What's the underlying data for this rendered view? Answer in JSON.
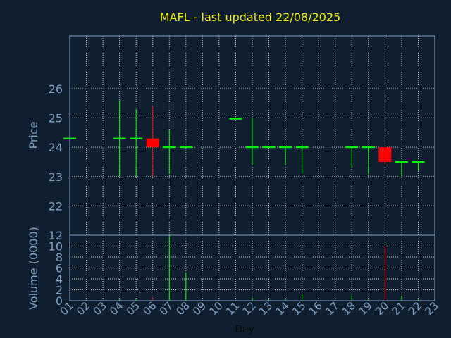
{
  "chart_data": {
    "type": "candlestick",
    "title": "MAFL - last updated 22/08/2025",
    "xlabel": "Day",
    "price_panel": {
      "ylabel": "Price",
      "yticks": [
        22,
        23,
        24,
        25,
        26
      ],
      "ylim": [
        21,
        27.8
      ]
    },
    "volume_panel": {
      "ylabel": "Volume (0000)",
      "yticks": [
        0,
        2,
        4,
        6,
        8,
        10,
        12
      ],
      "ylim": [
        0,
        12
      ]
    },
    "days": [
      "01",
      "02",
      "03",
      "04",
      "05",
      "06",
      "07",
      "08",
      "09",
      "10",
      "11",
      "12",
      "13",
      "14",
      "15",
      "16",
      "17",
      "18",
      "19",
      "20",
      "21",
      "22",
      "23"
    ],
    "candles": [
      {
        "day": "01",
        "open": 24.3,
        "high": 24.3,
        "low": 24.3,
        "close": 24.3,
        "volume": 0
      },
      {
        "day": "04",
        "open": 24.3,
        "high": 25.6,
        "low": 23.0,
        "close": 24.3,
        "volume": 0.3
      },
      {
        "day": "05",
        "open": 24.3,
        "high": 25.3,
        "low": 23.0,
        "close": 24.3,
        "volume": 0.3
      },
      {
        "day": "06",
        "open": 24.3,
        "high": 25.4,
        "low": 23.0,
        "close": 24.0,
        "volume": 0.6
      },
      {
        "day": "07",
        "open": 24.0,
        "high": 24.6,
        "low": 23.1,
        "close": 24.0,
        "volume": 12
      },
      {
        "day": "08",
        "open": 24.0,
        "high": 24.0,
        "low": 24.0,
        "close": 24.0,
        "volume": 5.2
      },
      {
        "day": "11",
        "open": 24.97,
        "high": 24.97,
        "low": 24.97,
        "close": 24.97,
        "volume": 0
      },
      {
        "day": "12",
        "open": 24.0,
        "high": 25.0,
        "low": 23.4,
        "close": 24.0,
        "volume": 0.6
      },
      {
        "day": "13",
        "open": 24.0,
        "high": 24.0,
        "low": 24.0,
        "close": 24.0,
        "volume": 0.3
      },
      {
        "day": "14",
        "open": 24.0,
        "high": 24.0,
        "low": 23.4,
        "close": 24.0,
        "volume": 0.3
      },
      {
        "day": "15",
        "open": 24.0,
        "high": 24.1,
        "low": 23.1,
        "close": 24.0,
        "volume": 1.2
      },
      {
        "day": "18",
        "open": 24.0,
        "high": 24.0,
        "low": 23.3,
        "close": 24.0,
        "volume": 1.0
      },
      {
        "day": "19",
        "open": 24.0,
        "high": 24.0,
        "low": 23.1,
        "close": 24.0,
        "volume": 0.3
      },
      {
        "day": "20",
        "open": 24.0,
        "high": 24.0,
        "low": 23.4,
        "close": 23.5,
        "volume": 10
      },
      {
        "day": "21",
        "open": 23.5,
        "high": 23.5,
        "low": 23.0,
        "close": 23.5,
        "volume": 0.8
      },
      {
        "day": "22",
        "open": 23.5,
        "high": 23.5,
        "low": 23.2,
        "close": 23.5,
        "volume": 0.3
      }
    ],
    "grid": true,
    "colors": {
      "background": "#0f1f30",
      "title": "#f0f000",
      "axis_text": "#7f9fbf",
      "frame": "#7f9fbf",
      "grid": "#ffffff",
      "up": "#00ff00",
      "down": "#ff0000"
    }
  }
}
